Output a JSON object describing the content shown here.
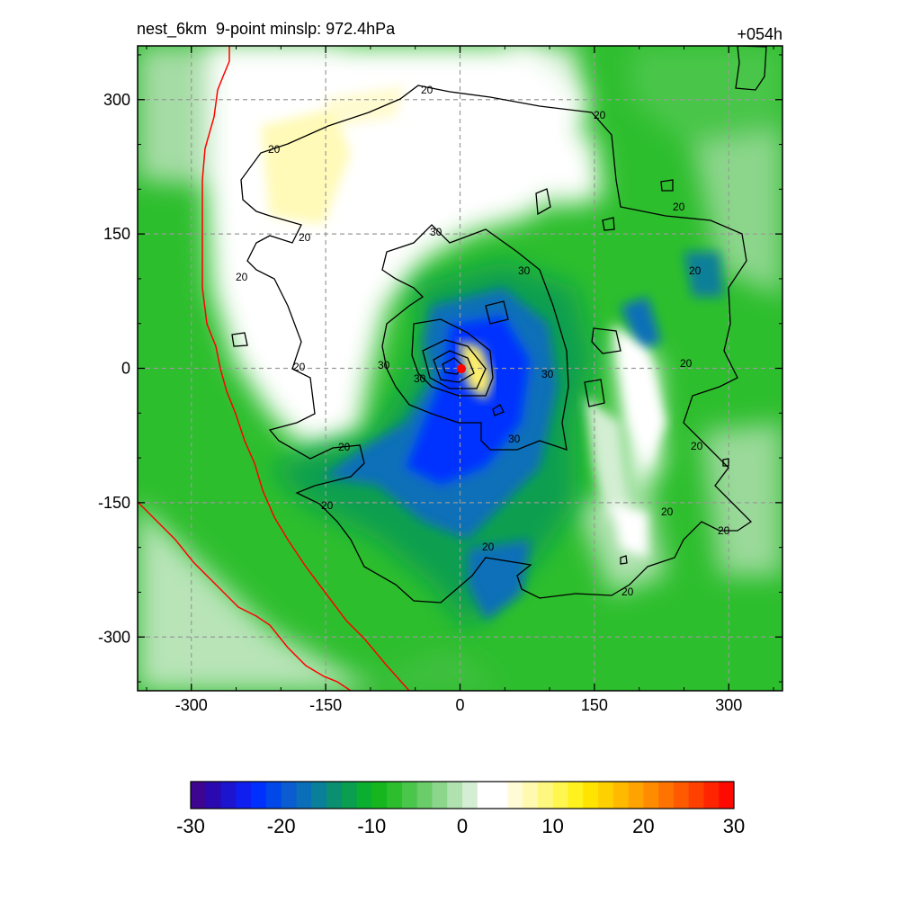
{
  "header": {
    "left_title": "nest_6km  9-point minslp: 972.4hPa",
    "right_title": "+054h"
  },
  "map": {
    "x_ticks": [
      "-300",
      "-150",
      "0",
      "150",
      "300"
    ],
    "y_ticks": [
      "300",
      "150",
      "0",
      "-150",
      "-300"
    ],
    "x_tick_values": [
      -300,
      -150,
      0,
      150,
      300
    ],
    "y_tick_values": [
      300,
      150,
      0,
      -150,
      -300
    ],
    "x_range": [
      -360,
      360
    ],
    "y_range": [
      -360,
      360
    ],
    "contour_labels": [
      "20",
      "20",
      "20",
      "20",
      "20",
      "20",
      "20",
      "20",
      "20",
      "20",
      "20",
      "20",
      "20",
      "20",
      "20",
      "30",
      "30",
      "30",
      "30",
      "30",
      "30"
    ],
    "center_marker_color": "#ff0000",
    "coastline_color": "#ff0000",
    "grid": true
  },
  "colorbar": {
    "tick_labels": [
      "-30",
      "-20",
      "-10",
      "0",
      "10",
      "20",
      "30"
    ],
    "tick_values": [
      -30,
      -20,
      -10,
      0,
      10,
      20,
      30
    ],
    "colors": [
      "#3d0590",
      "#2a09b0",
      "#1d14d0",
      "#0f1ff0",
      "#0030ff",
      "#0048e8",
      "#0a5cd0",
      "#0a6fb8",
      "#0a7f99",
      "#0a8f70",
      "#0a9f50",
      "#0aaf30",
      "#16b71e",
      "#2dbe2d",
      "#4ac64a",
      "#6acd6a",
      "#8cd68c",
      "#b0e2b0",
      "#d3eed3",
      "#ffffff",
      "#ffffff",
      "#fffbd6",
      "#fffab0",
      "#fff880",
      "#fff64f",
      "#fff21e",
      "#ffe400",
      "#ffd000",
      "#ffba00",
      "#ffa300",
      "#ff8c00",
      "#ff7400",
      "#ff5a00",
      "#ff4000",
      "#ff2500",
      "#ff0a00"
    ]
  }
}
